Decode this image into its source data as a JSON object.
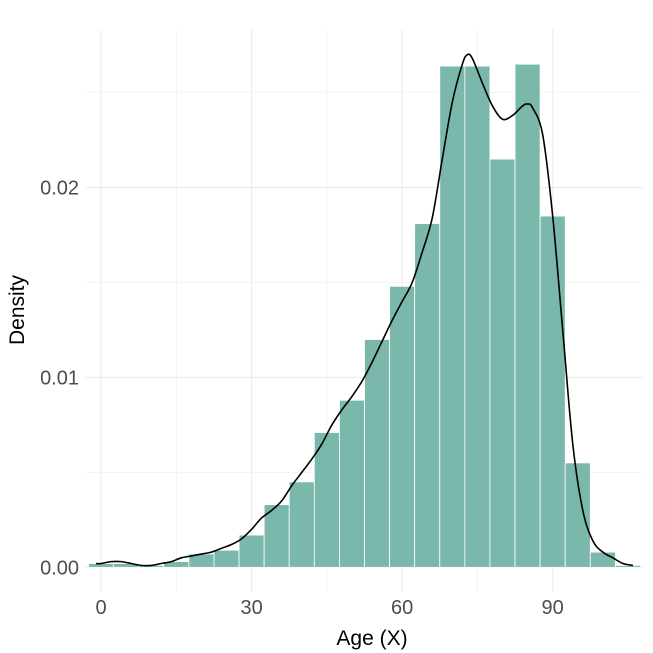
{
  "chart_data": {
    "type": "bar",
    "subtype": "histogram-with-density",
    "title": "",
    "xlabel": "Age (X)",
    "ylabel": "Density",
    "x_ticks": [
      0,
      30,
      60,
      90
    ],
    "y_ticks": [
      0.0,
      0.01,
      0.02
    ],
    "y_tick_labels": [
      "0.00",
      "0.01",
      "0.02"
    ],
    "xlim": [
      -3,
      108
    ],
    "ylim": [
      -0.0013,
      0.0283
    ],
    "grid": true,
    "legend": "none",
    "colors": {
      "bar_fill": "#79B8AA",
      "bar_edge": "#ffffff",
      "density_line": "#000000",
      "grid": "#ebebeb"
    },
    "histogram": {
      "bin_edges": [
        -2.5,
        2.5,
        7.5,
        12.5,
        17.5,
        22.5,
        27.5,
        32.5,
        37.5,
        42.5,
        47.5,
        52.5,
        57.5,
        62.5,
        67.5,
        72.5,
        77.5,
        82.5,
        87.5,
        92.5,
        97.5,
        102.5,
        107.5
      ],
      "densities": [
        0.0002,
        0.0002,
        0.0001,
        0.0003,
        0.0007,
        0.0009,
        0.0017,
        0.0033,
        0.0045,
        0.0071,
        0.0088,
        0.012,
        0.0148,
        0.0181,
        0.0264,
        0.0264,
        0.0215,
        0.0265,
        0.0185,
        0.0055,
        0.0008,
        0.0001
      ]
    },
    "density_curve": {
      "x": [
        -1,
        0,
        2,
        4,
        6,
        8,
        10,
        12,
        14,
        16,
        18,
        20,
        22,
        24,
        26,
        28,
        30,
        32,
        34,
        36,
        38,
        40,
        42,
        44,
        46,
        48,
        50,
        52,
        54,
        56,
        58,
        60,
        62,
        64,
        66,
        68,
        70,
        72,
        73,
        74,
        76,
        78,
        80,
        82,
        84,
        85,
        86,
        88,
        90,
        92,
        94,
        96,
        98,
        100,
        102,
        104,
        106
      ],
      "y": [
        0.0002,
        0.0002,
        0.0003,
        0.0003,
        0.0002,
        0.0001,
        0.0001,
        0.0002,
        0.0003,
        0.0005,
        0.0006,
        0.0007,
        0.0008,
        0.001,
        0.0012,
        0.0015,
        0.002,
        0.0026,
        0.003,
        0.0035,
        0.0043,
        0.005,
        0.0057,
        0.0065,
        0.0075,
        0.0083,
        0.009,
        0.0098,
        0.0108,
        0.0119,
        0.013,
        0.014,
        0.015,
        0.0166,
        0.0184,
        0.0215,
        0.0245,
        0.0265,
        0.027,
        0.0268,
        0.0255,
        0.0243,
        0.0236,
        0.0238,
        0.0243,
        0.0244,
        0.0242,
        0.0228,
        0.0185,
        0.0125,
        0.0065,
        0.003,
        0.0014,
        0.0008,
        0.0005,
        0.0002,
        0.0001
      ]
    }
  }
}
